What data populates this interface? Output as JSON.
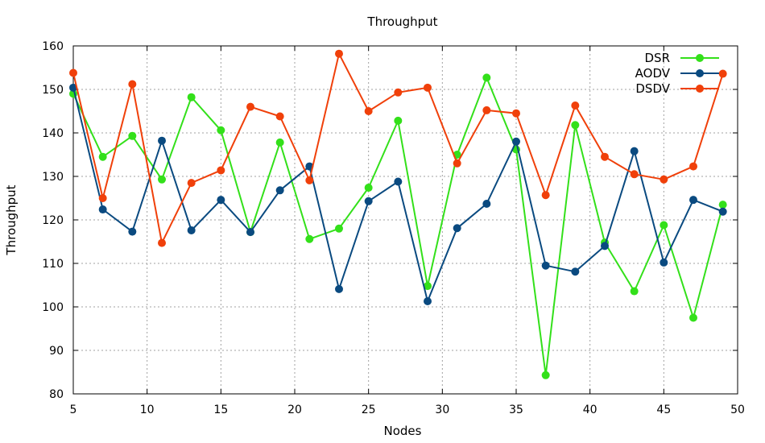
{
  "chart_data": {
    "type": "line",
    "title": "Throughput",
    "xlabel": "Nodes",
    "ylabel": "Throughput",
    "xlim": [
      5,
      50
    ],
    "ylim": [
      80,
      160
    ],
    "xticks": [
      5,
      10,
      15,
      20,
      25,
      30,
      35,
      40,
      45,
      50
    ],
    "yticks": [
      80,
      90,
      100,
      110,
      120,
      130,
      140,
      150,
      160
    ],
    "grid": true,
    "legend_position": "top-right",
    "x": [
      5,
      7,
      9,
      11,
      13,
      15,
      17,
      19,
      21,
      23,
      25,
      27,
      29,
      31,
      33,
      35,
      37,
      39,
      41,
      43,
      45,
      47,
      49
    ],
    "series": [
      {
        "name": "DSR",
        "color": "#33e01a",
        "values": [
          149,
          134.5,
          139.3,
          129.3,
          148.2,
          140.6,
          117.2,
          137.8,
          115.6,
          118,
          127.4,
          142.8,
          104.8,
          135,
          152.7,
          136.2,
          84.3,
          141.8,
          114.8,
          103.6,
          118.8,
          97.5,
          123.5
        ]
      },
      {
        "name": "AODV",
        "color": "#0a4a80",
        "values": [
          150.4,
          122.4,
          117.3,
          138.2,
          117.6,
          124.6,
          117.2,
          126.8,
          132.3,
          104.1,
          124.3,
          128.8,
          101.3,
          118.1,
          123.7,
          138,
          109.5,
          108.1,
          114,
          135.8,
          110.2,
          124.6,
          121.9
        ]
      },
      {
        "name": "DSDV",
        "color": "#f0400a",
        "values": [
          153.8,
          125,
          151.2,
          114.7,
          128.5,
          131.4,
          146,
          143.8,
          129.1,
          158.2,
          145,
          149.3,
          150.4,
          133,
          145.2,
          144.5,
          125.7,
          146.3,
          134.5,
          130.5,
          129.3,
          132.3,
          153.6
        ]
      }
    ]
  }
}
